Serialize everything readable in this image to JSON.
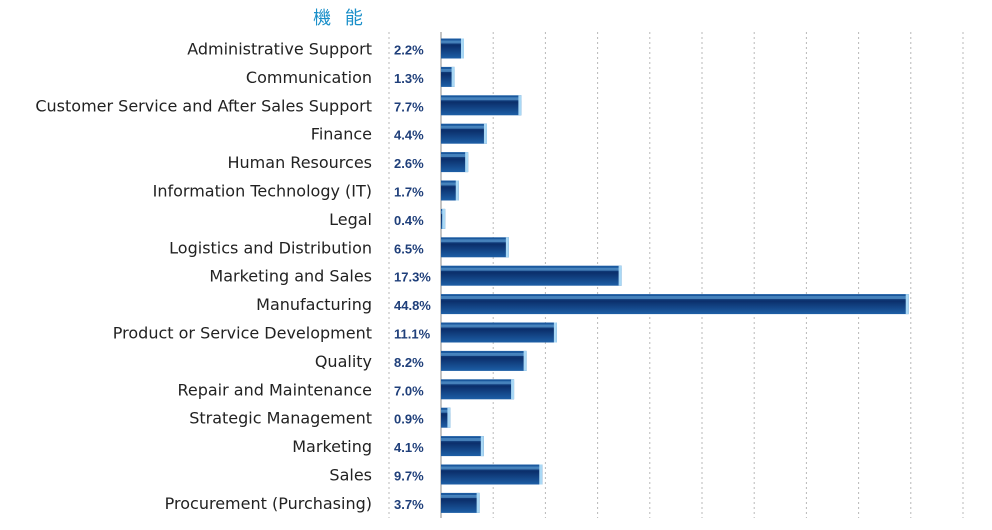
{
  "chart_data": {
    "type": "bar",
    "orientation": "horizontal",
    "title": "機 能",
    "categories": [
      "Administrative Support",
      "Communication",
      "Customer Service and After Sales Support",
      "Finance",
      "Human Resources",
      "Information Technology (IT)",
      "Legal",
      "Logistics and Distribution",
      "Marketing and Sales",
      "Manufacturing",
      "Product or Service Development",
      "Quality",
      "Repair and Maintenance",
      "Strategic Management",
      "Marketing",
      "Sales",
      "Procurement (Purchasing)"
    ],
    "values": [
      2.2,
      1.3,
      7.7,
      4.4,
      2.6,
      1.7,
      0.4,
      6.5,
      17.3,
      44.8,
      11.1,
      8.2,
      7.0,
      0.9,
      4.1,
      9.7,
      3.7
    ],
    "value_labels": [
      "2.2%",
      "1.3%",
      "7.7%",
      "4.4%",
      "2.6%",
      "1.7%",
      "0.4%",
      "6.5%",
      "17.3%",
      "44.8%",
      "11.1%",
      "8.2%",
      "7.0%",
      "0.9%",
      "4.1%",
      "9.7%",
      "3.7%"
    ],
    "xlim": [
      0,
      50
    ],
    "grid": true,
    "legend": "none",
    "colors": {
      "bar_dark": "#0b2f6b",
      "bar_mid": "#1d5fa6",
      "bar_light": "#6fb3e6",
      "bar_edge": "#a9d8f5",
      "title": "#1a8fc9",
      "value_label": "#1f3f7a"
    }
  }
}
